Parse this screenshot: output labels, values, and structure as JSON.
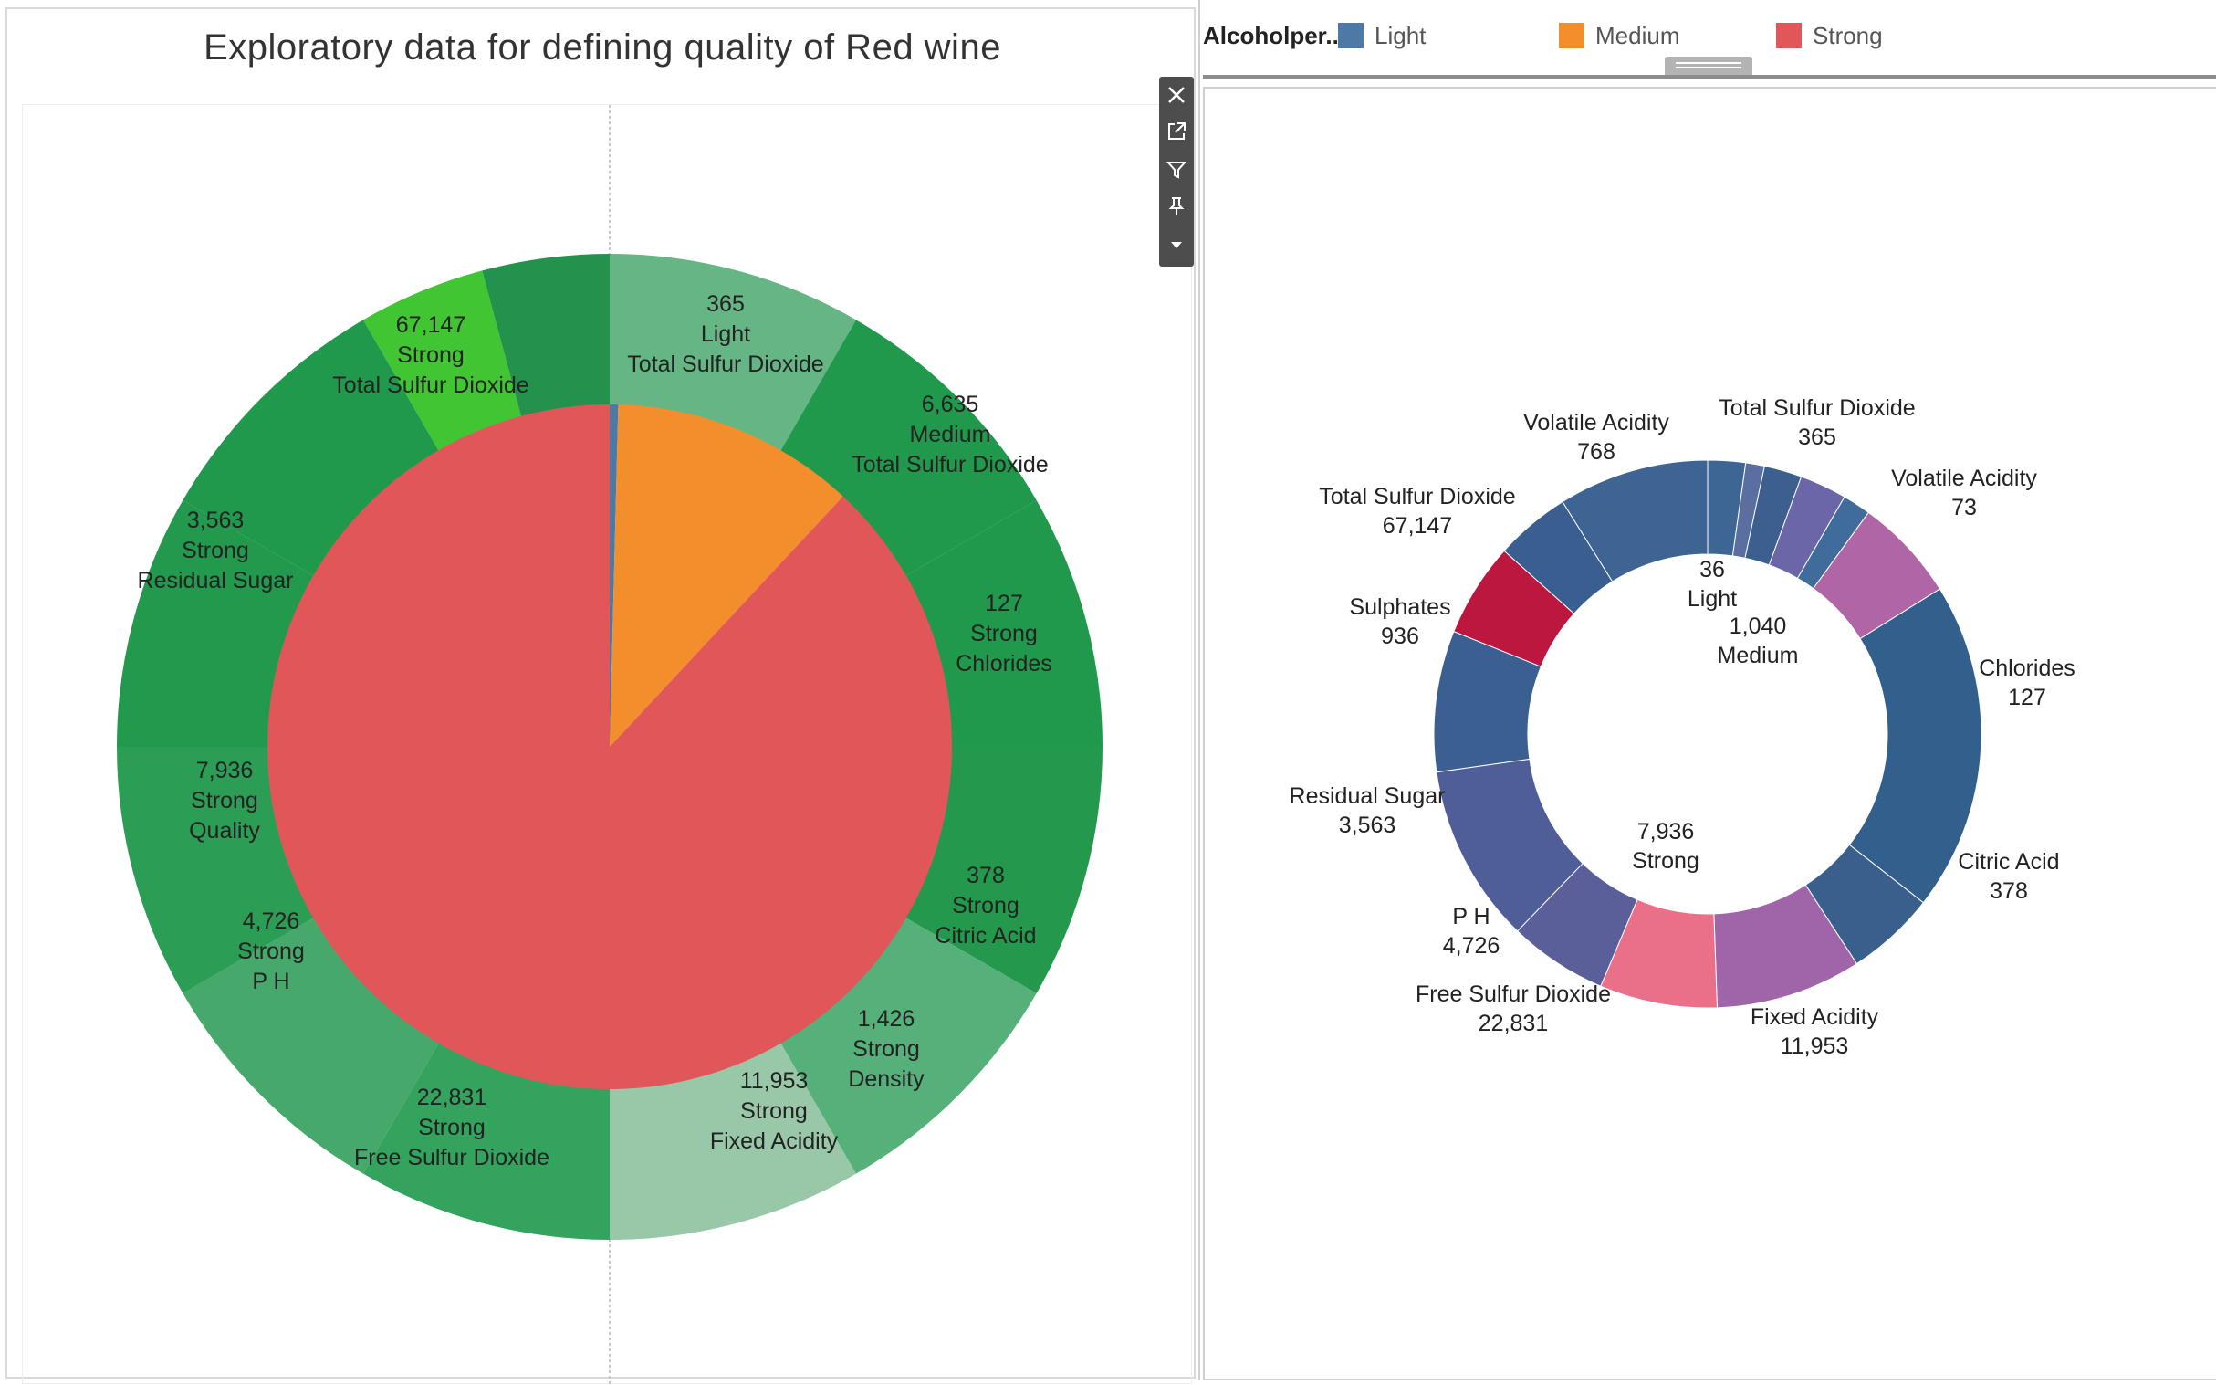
{
  "left_chart": {
    "title": "Exploratory data for defining quality of Red wine",
    "chart_data": {
      "type": "pie",
      "title": "Exploratory data for defining quality of Red wine",
      "inner_pie": [
        {
          "category": "Light",
          "value": 36,
          "color": "#4e79a7"
        },
        {
          "category": "Medium",
          "value": 1040,
          "color": "#f28e2b"
        },
        {
          "category": "Strong",
          "value": 7936,
          "color": "#e15759"
        }
      ],
      "outer_ring": [
        {
          "value": "365",
          "group": "Light",
          "measure": "Total Sulfur Dioxide",
          "color": "#66b685"
        },
        {
          "value": "6,635",
          "group": "Medium",
          "measure": "Total Sulfur Dioxide",
          "color": "#21994c"
        },
        {
          "value": "127",
          "group": "Strong",
          "measure": "Chlorides",
          "color": "#21994c"
        },
        {
          "value": "378",
          "group": "Strong",
          "measure": "Citric Acid",
          "color": "#24994e"
        },
        {
          "value": "1,426",
          "group": "Strong",
          "measure": "Density",
          "color": "#56b07a"
        },
        {
          "value": "11,953",
          "group": "Strong",
          "measure": "Fixed Acidity",
          "color": "#98c8a8"
        },
        {
          "value": "22,831",
          "group": "Strong",
          "measure": "Free Sulfur Dioxide",
          "color": "#34a35e"
        },
        {
          "value": "",
          "group": "",
          "measure": "",
          "color": "#46a86b"
        },
        {
          "value": "4,726",
          "group": "Strong",
          "measure": "P H",
          "color": "#2b9d55"
        },
        {
          "value": "7,936",
          "group": "Strong",
          "measure": "Quality",
          "color": "#23994d"
        },
        {
          "value": "3,563",
          "group": "Strong",
          "measure": "Residual Sugar",
          "color": "#21994c"
        },
        {
          "value": "",
          "group": "",
          "measure": "",
          "color": "#42c533"
        },
        {
          "value": "67,147",
          "group": "Strong",
          "measure": "Total Sulfur Dioxide",
          "color": "#23924d"
        }
      ]
    }
  },
  "legend": {
    "title": "Alcoholper..",
    "items": [
      {
        "label": "Light",
        "color": "#4e79a7"
      },
      {
        "label": "Medium",
        "color": "#f28e2b"
      },
      {
        "label": "Strong",
        "color": "#e15759"
      }
    ]
  },
  "right_chart": {
    "chart_data": {
      "type": "pie",
      "subtype": "donut",
      "center_labels": [
        {
          "value": "36",
          "group": "Light"
        },
        {
          "value": "1,040",
          "group": "Medium"
        },
        {
          "value": "7,936",
          "group": "Strong"
        }
      ],
      "segments": [
        {
          "measure": "Total Sulfur Dioxide",
          "value": "365",
          "color": "#3e6694"
        },
        {
          "measure": "",
          "value": "",
          "color": "#5a6fa0"
        },
        {
          "measure": "",
          "value": "",
          "color": "#3d5f8f"
        },
        {
          "measure": "Volatile Acidity",
          "value": "73",
          "color": "#6b66a8"
        },
        {
          "measure": "",
          "value": "",
          "color": "#3f6c9a"
        },
        {
          "measure": "Chlorides",
          "value": "127",
          "color": "#b066a6"
        },
        {
          "measure": "Citric Acid",
          "value": "378",
          "color": "#325f8c"
        },
        {
          "measure": "",
          "value": "",
          "color": "#3b5f8d"
        },
        {
          "measure": "Fixed Acidity",
          "value": "11,953",
          "color": "#a064a9"
        },
        {
          "measure": "Free Sulfur Dioxide",
          "value": "22,831",
          "color": "#e97088"
        },
        {
          "measure": "P H",
          "value": "4,726",
          "color": "#5a5f9a"
        },
        {
          "measure": "Residual Sugar",
          "value": "3,563",
          "color": "#4f5d99"
        },
        {
          "measure": "Sulphates",
          "value": "936",
          "color": "#3b5f91"
        },
        {
          "measure": "Total Sulfur Dioxide",
          "value": "67,147",
          "color": "#bb173f"
        },
        {
          "measure": "Volatile Acidity",
          "value": "768",
          "color": "#3b5e90"
        },
        {
          "measure": "",
          "value": "",
          "color": "#3e6494"
        }
      ]
    }
  },
  "toolbar": {
    "icons": [
      "close-icon",
      "pop-out-icon",
      "filter-icon",
      "pin-icon",
      "dropdown-icon"
    ]
  }
}
